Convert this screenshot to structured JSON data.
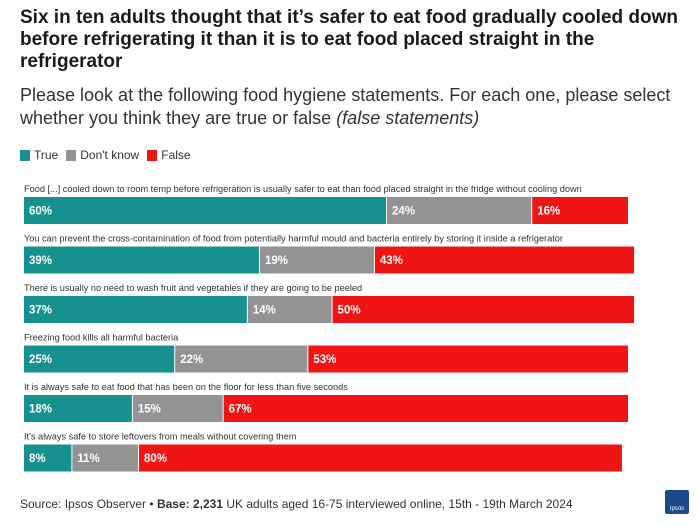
{
  "title": "Six in ten adults thought that it’s safer to eat food gradually cooled down before refrigerating it than it is to eat food placed straight in the refrigerator",
  "subtitle": "Please look at the following food hygiene statements. For each one, please select whether you think they are true or false",
  "subtitle_emphasis": "(false statements)",
  "footer": {
    "source": "Source: Ipsos Observer •",
    "base_label": "Base: 2,231",
    "base_detail": "UK adults aged 16-75 interviewed online, 15th - 19th March 2024"
  },
  "logo_text": "Ipsos",
  "chart_data": {
    "type": "bar",
    "orientation": "horizontal",
    "stacked": true,
    "unit": "%",
    "legend_position": "top-left",
    "categories": [
      "Food [...] cooled down to room temp before refrigeration is usually safer to eat than food placed straight in the fridge without cooling down",
      "You can prevent the cross-contamination of food from potentially harmful mould and bacteria entirely by storing it inside a refrigerator",
      "There is usually no need to wash fruit and vegetables if they are going to be peeled",
      "Freezing food kills all harmful bacteria",
      "It is always safe to eat food that has been on the floor for less than five seconds",
      "It's always safe to store leftovers from meals without covering them"
    ],
    "series": [
      {
        "name": "True",
        "color": "#17918f",
        "values": [
          60,
          39,
          37,
          25,
          18,
          8
        ]
      },
      {
        "name": "Don't know",
        "color": "#939393",
        "values": [
          24,
          19,
          14,
          22,
          15,
          11
        ]
      },
      {
        "name": "False",
        "color": "#f01515",
        "values": [
          16,
          43,
          50,
          53,
          67,
          80
        ]
      }
    ]
  }
}
